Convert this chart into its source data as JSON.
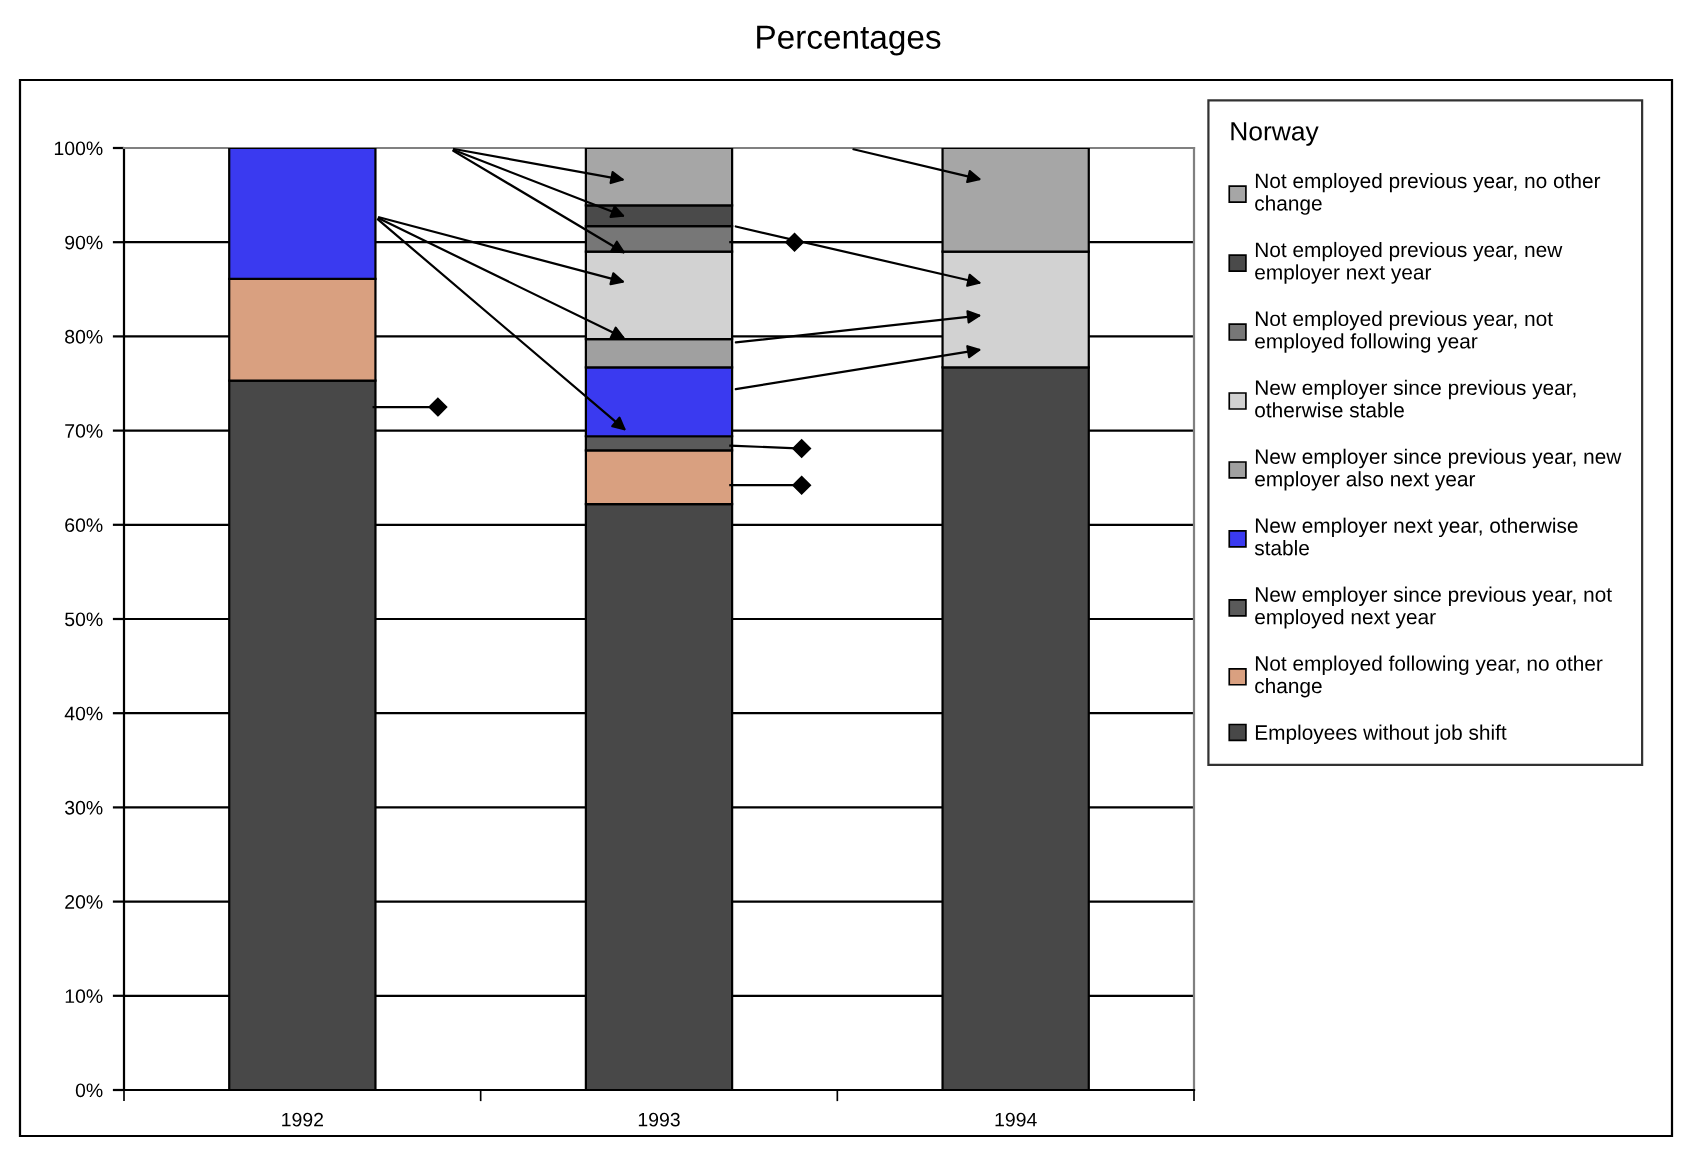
{
  "chart_data": {
    "type": "bar",
    "title": "Percentages",
    "legend_title": "Norway",
    "stacked": true,
    "legend": "right",
    "grid": "y",
    "categories": [
      "1992",
      "1993",
      "1994"
    ],
    "ylim": [
      0,
      100
    ],
    "yticks": [
      {
        "value": 0,
        "label": "0%"
      },
      {
        "value": 10,
        "label": "10%"
      },
      {
        "value": 20,
        "label": "20%"
      },
      {
        "value": 30,
        "label": "30%"
      },
      {
        "value": 40,
        "label": "40%"
      },
      {
        "value": 50,
        "label": "50%"
      },
      {
        "value": 60,
        "label": "60%"
      },
      {
        "value": 70,
        "label": "70%"
      },
      {
        "value": 80,
        "label": "80%"
      },
      {
        "value": 90,
        "label": "90%"
      },
      {
        "value": 100,
        "label": "100%"
      }
    ],
    "series": [
      {
        "name": "Employees without job shift",
        "color": "#484848",
        "values": [
          75.3,
          62.2,
          76.7
        ]
      },
      {
        "name": "Not employed following year, no other change",
        "color": "#d9a080",
        "values": [
          10.8,
          5.7,
          null
        ]
      },
      {
        "name": "New employer since previous year, not employed next year",
        "color": "#5a5a5a",
        "values": [
          null,
          1.5,
          null
        ]
      },
      {
        "name": "New employer next year, otherwise stable",
        "color": "#3a3af0",
        "values": [
          13.9,
          7.3,
          null
        ]
      },
      {
        "name": "New employer since previous year, new employer also next year",
        "color": "#a0a0a0",
        "values": [
          null,
          3.0,
          null
        ]
      },
      {
        "name": "New employer since previous year, otherwise stable",
        "color": "#d2d2d2",
        "values": [
          null,
          9.3,
          12.3
        ]
      },
      {
        "name": "Not employed previous year, not employed following year",
        "color": "#777777",
        "values": [
          null,
          2.7,
          null
        ]
      },
      {
        "name": "Not employed previous year, new employer next year",
        "color": "#4a4a4a",
        "values": [
          null,
          2.2,
          null
        ]
      },
      {
        "name": "Not employed previous year, no other change",
        "color": "#a6a6a6",
        "values": [
          null,
          6.1,
          11.0
        ]
      }
    ]
  }
}
